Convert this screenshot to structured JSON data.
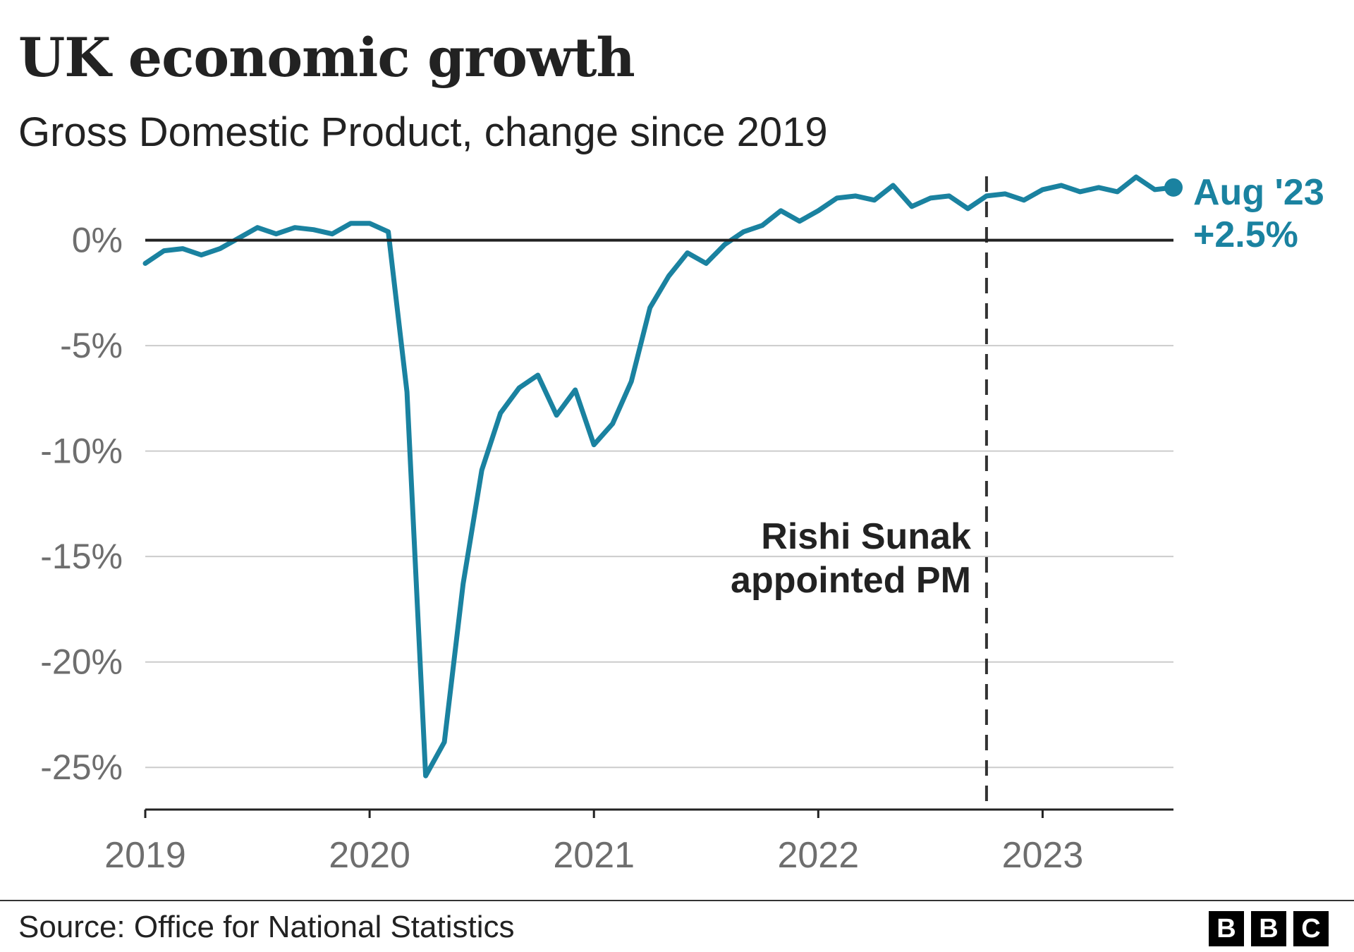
{
  "title": "UK economic growth",
  "subtitle": "Gross Domestic Product, change since 2019",
  "source": "Source: Office for National Statistics",
  "logo": {
    "letters": [
      "B",
      "B",
      "C"
    ]
  },
  "colors": {
    "line": "#1a82a0",
    "text": "#222222",
    "axis_text": "#6e6e6e",
    "gridline": "#cccccc",
    "zero_line": "#222222",
    "annotation_line": "#333333"
  },
  "chart_data": {
    "type": "line",
    "x_unit": "month",
    "x_start": "2019-01",
    "x_end": "2023-08",
    "xlim": [
      "2019-01",
      "2023-08"
    ],
    "ylim": [
      -27,
      3.5
    ],
    "y_ticks": [
      0,
      -5,
      -10,
      -15,
      -20,
      -25
    ],
    "y_tick_labels": [
      "0%",
      "-5%",
      "-10%",
      "-15%",
      "-20%",
      "-25%"
    ],
    "x_ticks": [
      "2019-01",
      "2020-01",
      "2021-01",
      "2022-01",
      "2023-01"
    ],
    "x_tick_labels": [
      "2019",
      "2020",
      "2021",
      "2022",
      "2023"
    ],
    "grid": true,
    "series": [
      {
        "x": [
          "2019-01",
          "2019-02",
          "2019-03",
          "2019-04",
          "2019-05",
          "2019-06",
          "2019-07",
          "2019-08",
          "2019-09",
          "2019-10",
          "2019-11",
          "2019-12",
          "2020-01",
          "2020-02",
          "2020-03",
          "2020-04",
          "2020-05",
          "2020-06",
          "2020-07",
          "2020-08",
          "2020-09",
          "2020-10",
          "2020-11",
          "2020-12",
          "2021-01",
          "2021-02",
          "2021-03",
          "2021-04",
          "2021-05",
          "2021-06",
          "2021-07",
          "2021-08",
          "2021-09",
          "2021-10",
          "2021-11",
          "2021-12",
          "2022-01",
          "2022-02",
          "2022-03",
          "2022-04",
          "2022-05",
          "2022-06",
          "2022-07",
          "2022-08",
          "2022-09",
          "2022-10",
          "2022-11",
          "2022-12",
          "2023-01",
          "2023-02",
          "2023-03",
          "2023-04",
          "2023-05",
          "2023-06",
          "2023-07",
          "2023-08"
        ],
        "values": [
          -1.1,
          -0.5,
          -0.4,
          -0.7,
          -0.4,
          0.1,
          0.6,
          0.3,
          0.6,
          0.5,
          0.3,
          0.8,
          0.8,
          0.4,
          -7.2,
          -25.4,
          -23.8,
          -16.3,
          -10.9,
          -8.2,
          -7.0,
          -6.4,
          -8.3,
          -7.1,
          -9.7,
          -8.7,
          -6.7,
          -3.2,
          -1.7,
          -0.6,
          -1.1,
          -0.2,
          0.4,
          0.7,
          1.4,
          0.9,
          1.4,
          2.0,
          2.1,
          1.9,
          2.6,
          1.6,
          2.0,
          2.1,
          1.5,
          2.1,
          2.2,
          1.9,
          2.4,
          2.6,
          2.3,
          2.5,
          2.3,
          3.0,
          2.4,
          2.5
        ]
      }
    ],
    "end_label": {
      "date": "Aug '23",
      "value": "+2.5%"
    },
    "annotation": {
      "x": "2022-10",
      "line_style": "dashed",
      "text_lines": [
        "Rishi Sunak",
        "appointed PM"
      ]
    }
  }
}
